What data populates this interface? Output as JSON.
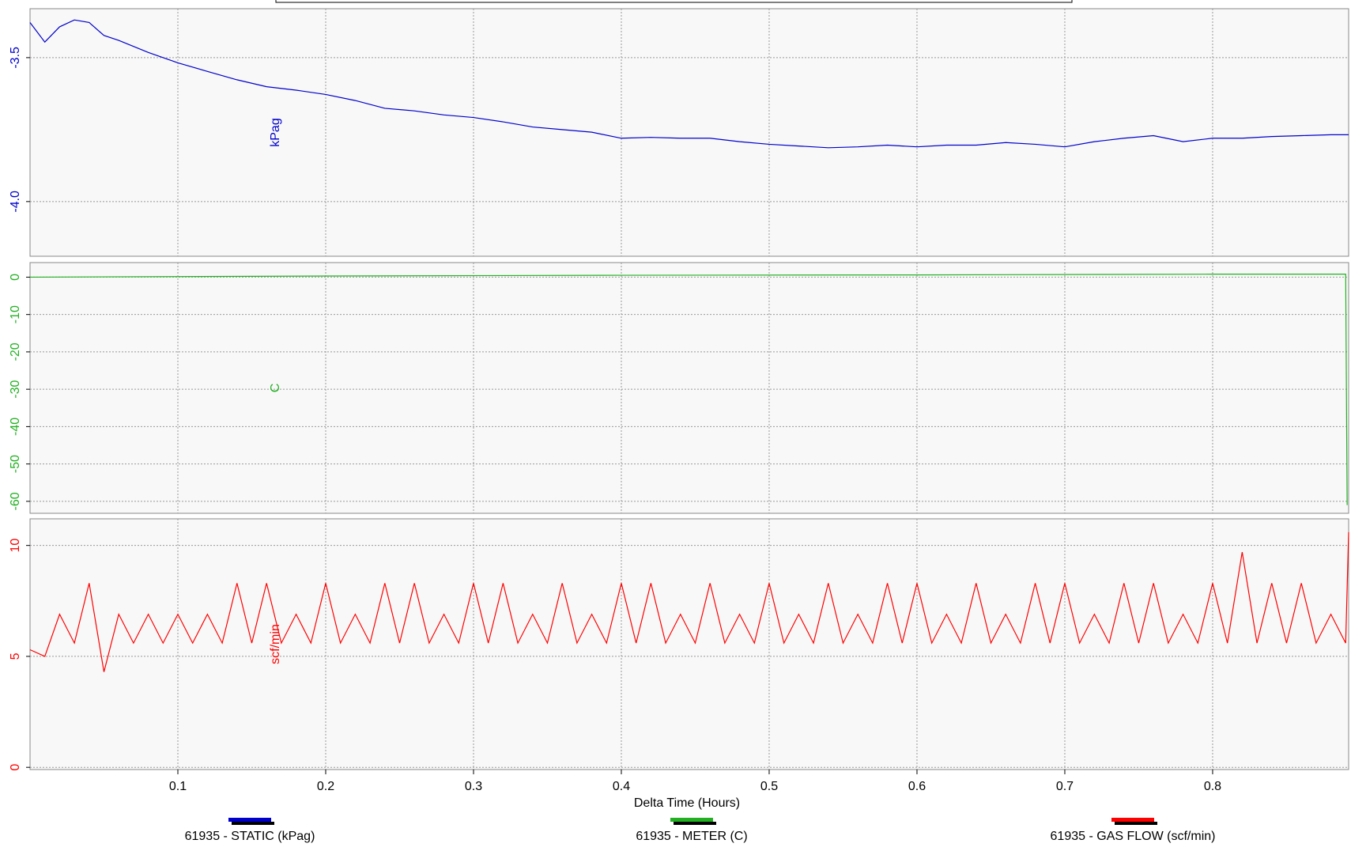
{
  "chart_data": [
    {
      "type": "line",
      "ylabel": "kPag",
      "x": [
        0,
        0.01,
        0.02,
        0.03,
        0.04,
        0.05,
        0.06,
        0.08,
        0.1,
        0.12,
        0.14,
        0.16,
        0.18,
        0.2,
        0.22,
        0.24,
        0.26,
        0.28,
        0.3,
        0.32,
        0.34,
        0.36,
        0.38,
        0.4,
        0.42,
        0.44,
        0.46,
        0.48,
        0.5,
        0.52,
        0.54,
        0.56,
        0.58,
        0.6,
        0.62,
        0.64,
        0.66,
        0.68,
        0.7,
        0.72,
        0.74,
        0.76,
        0.78,
        0.8,
        0.82,
        0.84,
        0.86,
        0.88,
        0.892
      ],
      "series": [
        {
          "name": "61935 - STATIC (kPag)",
          "color": "#0000cc",
          "values": [
            -3.378,
            -3.446,
            -3.393,
            -3.369,
            -3.378,
            -3.423,
            -3.44,
            -3.482,
            -3.518,
            -3.548,
            -3.577,
            -3.601,
            -3.613,
            -3.628,
            -3.649,
            -3.676,
            -3.685,
            -3.699,
            -3.708,
            -3.723,
            -3.741,
            -3.75,
            -3.759,
            -3.78,
            -3.777,
            -3.78,
            -3.78,
            -3.792,
            -3.801,
            -3.807,
            -3.813,
            -3.81,
            -3.804,
            -3.81,
            -3.804,
            -3.804,
            -3.795,
            -3.801,
            -3.81,
            -3.792,
            -3.78,
            -3.771,
            -3.792,
            -3.78,
            -3.78,
            -3.774,
            -3.771,
            -3.768,
            -3.768
          ]
        }
      ],
      "ylim": [
        -4.19,
        -3.33
      ],
      "yticks": [
        -3.5,
        {
          "value": -4,
          "label": "-4.0"
        }
      ],
      "grid": true
    },
    {
      "type": "line",
      "ylabel": "C",
      "x": [
        0,
        0.2,
        0.4,
        0.6,
        0.8,
        0.89,
        0.891
      ],
      "series": [
        {
          "name": "61935 - METER (C)",
          "color": "#22b022",
          "values": [
            0,
            0.3,
            0.5,
            0.6,
            0.8,
            0.8,
            -61
          ]
        }
      ],
      "ylim": [
        -63.2,
        3.9
      ],
      "yticks": [
        0,
        -10,
        -20,
        -30,
        -40,
        -50,
        -60
      ],
      "grid": true
    },
    {
      "type": "line",
      "ylabel": "scf/min",
      "xlabel": "Delta Time (Hours)",
      "x": [
        0,
        0.01,
        0.02,
        0.03,
        0.04,
        0.05,
        0.06,
        0.07,
        0.08,
        0.09,
        0.1,
        0.11,
        0.12,
        0.13,
        0.14,
        0.15,
        0.16,
        0.17,
        0.18,
        0.19,
        0.2,
        0.21,
        0.22,
        0.23,
        0.24,
        0.25,
        0.26,
        0.27,
        0.28,
        0.29,
        0.3,
        0.31,
        0.32,
        0.33,
        0.34,
        0.35,
        0.36,
        0.37,
        0.38,
        0.39,
        0.4,
        0.41,
        0.42,
        0.43,
        0.44,
        0.45,
        0.46,
        0.47,
        0.48,
        0.49,
        0.5,
        0.51,
        0.52,
        0.53,
        0.54,
        0.55,
        0.56,
        0.57,
        0.58,
        0.59,
        0.6,
        0.61,
        0.62,
        0.63,
        0.64,
        0.65,
        0.66,
        0.67,
        0.68,
        0.69,
        0.7,
        0.71,
        0.72,
        0.73,
        0.74,
        0.75,
        0.76,
        0.77,
        0.78,
        0.79,
        0.8,
        0.81,
        0.82,
        0.83,
        0.84,
        0.85,
        0.86,
        0.87,
        0.88,
        0.89,
        0.892
      ],
      "series": [
        {
          "name": "61935 - GAS FLOW (scf/min)",
          "color": "#ff0000",
          "values": [
            5.3,
            5.0,
            6.9,
            5.6,
            8.3,
            4.3,
            6.9,
            5.6,
            6.9,
            5.6,
            6.9,
            5.6,
            6.9,
            5.6,
            8.3,
            5.6,
            8.3,
            5.6,
            6.9,
            5.6,
            8.3,
            5.6,
            6.9,
            5.6,
            8.3,
            5.6,
            8.3,
            5.6,
            6.9,
            5.6,
            8.3,
            5.6,
            8.3,
            5.6,
            6.9,
            5.6,
            8.3,
            5.6,
            6.9,
            5.6,
            8.3,
            5.6,
            8.3,
            5.6,
            6.9,
            5.6,
            8.3,
            5.6,
            6.9,
            5.6,
            8.3,
            5.6,
            6.9,
            5.6,
            8.3,
            5.6,
            6.9,
            5.6,
            8.3,
            5.6,
            8.3,
            5.6,
            6.9,
            5.6,
            8.3,
            5.6,
            6.9,
            5.6,
            8.3,
            5.6,
            8.3,
            5.6,
            6.9,
            5.6,
            8.3,
            5.6,
            8.3,
            5.6,
            6.9,
            5.6,
            8.3,
            5.6,
            9.7,
            5.6,
            8.3,
            5.6,
            8.3,
            5.6,
            6.9,
            5.6,
            10.6
          ]
        }
      ],
      "xlim": [
        0,
        0.892
      ],
      "xticks": [
        0.1,
        0.2,
        0.3,
        0.4,
        0.5,
        0.6,
        0.7,
        0.8
      ],
      "ylim": [
        -0.1,
        11.2
      ],
      "yticks": [
        0,
        5,
        10
      ],
      "grid": true
    }
  ]
}
